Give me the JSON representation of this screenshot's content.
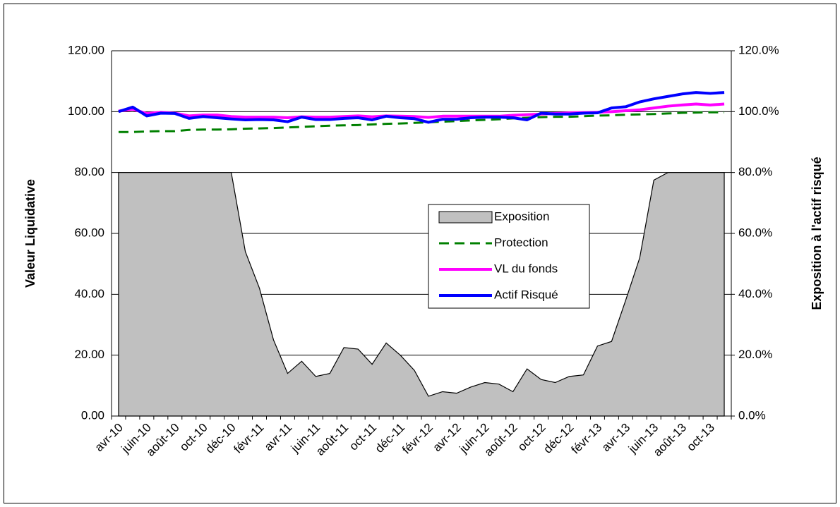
{
  "chart_data": {
    "type": "line",
    "y_label": "Valeur Liquidative",
    "y2_label": "Exposition à l'actif risqué",
    "categories": [
      "avr-10",
      null,
      "juin-10",
      null,
      "août-10",
      null,
      "oct-10",
      null,
      "déc-10",
      null,
      "févr-11",
      null,
      "avr-11",
      null,
      "juin-11",
      null,
      "août-11",
      null,
      "oct-11",
      null,
      "déc-11",
      null,
      "févr-12",
      null,
      "avr-12",
      null,
      "juin-12",
      null,
      "août-12",
      null,
      "oct-12",
      null,
      "déc-12",
      null,
      "févr-13",
      null,
      "avr-13",
      null,
      "juin-13",
      null,
      "août-13",
      null,
      "oct-13",
      null
    ],
    "series": [
      {
        "name": "Exposition",
        "type": "area",
        "axis": "y2",
        "color": "#c0c0c0",
        "values": [
          80,
          80,
          80,
          80,
          80,
          80,
          80,
          80,
          80,
          54,
          42,
          25,
          14,
          18,
          13,
          14,
          22.5,
          22,
          17,
          24,
          20,
          15,
          6.5,
          8,
          7.5,
          9.5,
          11,
          10.5,
          8,
          15.5,
          12,
          11,
          13,
          13.5,
          23,
          24.5,
          38,
          52,
          77.5,
          80,
          80,
          80,
          80,
          80
        ]
      },
      {
        "name": "Protection",
        "type": "line",
        "dash": true,
        "color": "#008000",
        "values": [
          93.3,
          93.3,
          93.5,
          93.6,
          93.6,
          94.0,
          94.1,
          94.1,
          94.2,
          94.4,
          94.5,
          94.6,
          94.8,
          95.0,
          95.2,
          95.4,
          95.5,
          95.6,
          95.8,
          96.0,
          96.1,
          96.3,
          96.5,
          96.7,
          96.9,
          97.1,
          97.3,
          97.5,
          97.8,
          98.0,
          98.2,
          98.3,
          98.3,
          98.5,
          98.7,
          98.8,
          99.0,
          99.1,
          99.2,
          99.4,
          99.6,
          99.7,
          99.8,
          99.8
        ]
      },
      {
        "name": "VL du fonds",
        "type": "line",
        "color": "#ff00ff",
        "values": [
          100.2,
          100.8,
          99.4,
          99.8,
          99.5,
          98.6,
          98.9,
          98.9,
          98.4,
          98.2,
          98.2,
          98.2,
          98.0,
          98.3,
          98.2,
          98.2,
          98.4,
          98.6,
          98.3,
          98.6,
          98.5,
          98.4,
          98.1,
          98.5,
          98.5,
          98.5,
          98.5,
          98.5,
          98.8,
          99.0,
          99.2,
          99.4,
          99.6,
          99.7,
          99.8,
          100.0,
          100.3,
          100.6,
          101.2,
          101.8,
          102.2,
          102.5,
          102.2,
          102.5
        ]
      },
      {
        "name": "Actif Risqué",
        "type": "line",
        "color": "#0000ff",
        "values": [
          100.0,
          101.5,
          98.6,
          99.5,
          99.4,
          97.8,
          98.4,
          98.0,
          97.6,
          97.3,
          97.4,
          97.3,
          96.7,
          98.2,
          97.4,
          97.4,
          97.8,
          98.0,
          97.3,
          98.5,
          98.0,
          97.7,
          96.5,
          97.5,
          97.5,
          98.0,
          98.2,
          98.2,
          98.0,
          97.3,
          99.5,
          99.2,
          99.2,
          99.5,
          99.6,
          101.2,
          101.6,
          103.2,
          104.2,
          105.0,
          105.8,
          106.3,
          106.0,
          106.3
        ]
      }
    ],
    "ylim": [
      0,
      120
    ],
    "yticks": [
      {
        "value": 0,
        "label": "0.00"
      },
      {
        "value": 20,
        "label": "20.00"
      },
      {
        "value": 40,
        "label": "40.00"
      },
      {
        "value": 60,
        "label": "60.00"
      },
      {
        "value": 80,
        "label": "80.00"
      },
      {
        "value": 100,
        "label": "100.00"
      },
      {
        "value": 120,
        "label": "120.00"
      }
    ],
    "y2lim": [
      0,
      120
    ],
    "y2ticks": [
      {
        "value": 0,
        "label": "0.0%"
      },
      {
        "value": 20,
        "label": "20.0%"
      },
      {
        "value": 40,
        "label": "40.0%"
      },
      {
        "value": 60,
        "label": "60.0%"
      },
      {
        "value": 80,
        "label": "80.0%"
      },
      {
        "value": 100,
        "label": "100.0%"
      },
      {
        "value": 120,
        "label": "120.0%"
      }
    ],
    "grid": true
  }
}
